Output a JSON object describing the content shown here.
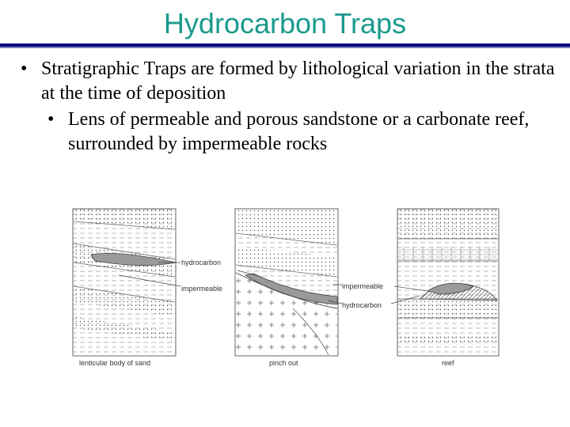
{
  "slide": {
    "title": "Hydrocarbon Traps",
    "bullets": [
      {
        "text": "Stratigraphic Traps are formed by lithological variation in the strata at the time of deposition",
        "sub": [
          "Lens of permeable and porous sandstone or a carbonate reef, surrounded by impermeable rocks"
        ]
      }
    ]
  },
  "figure": {
    "panels": [
      {
        "caption": "lenticular body of sand"
      },
      {
        "caption": "pinch out"
      },
      {
        "caption": "reef"
      }
    ],
    "labels": {
      "hydrocarbon_1": "hydrocarbon",
      "impermeable_1": "impermeable",
      "impermeable_2": "impermeable",
      "hydrocarbon_2": "hydrocarbon"
    }
  }
}
